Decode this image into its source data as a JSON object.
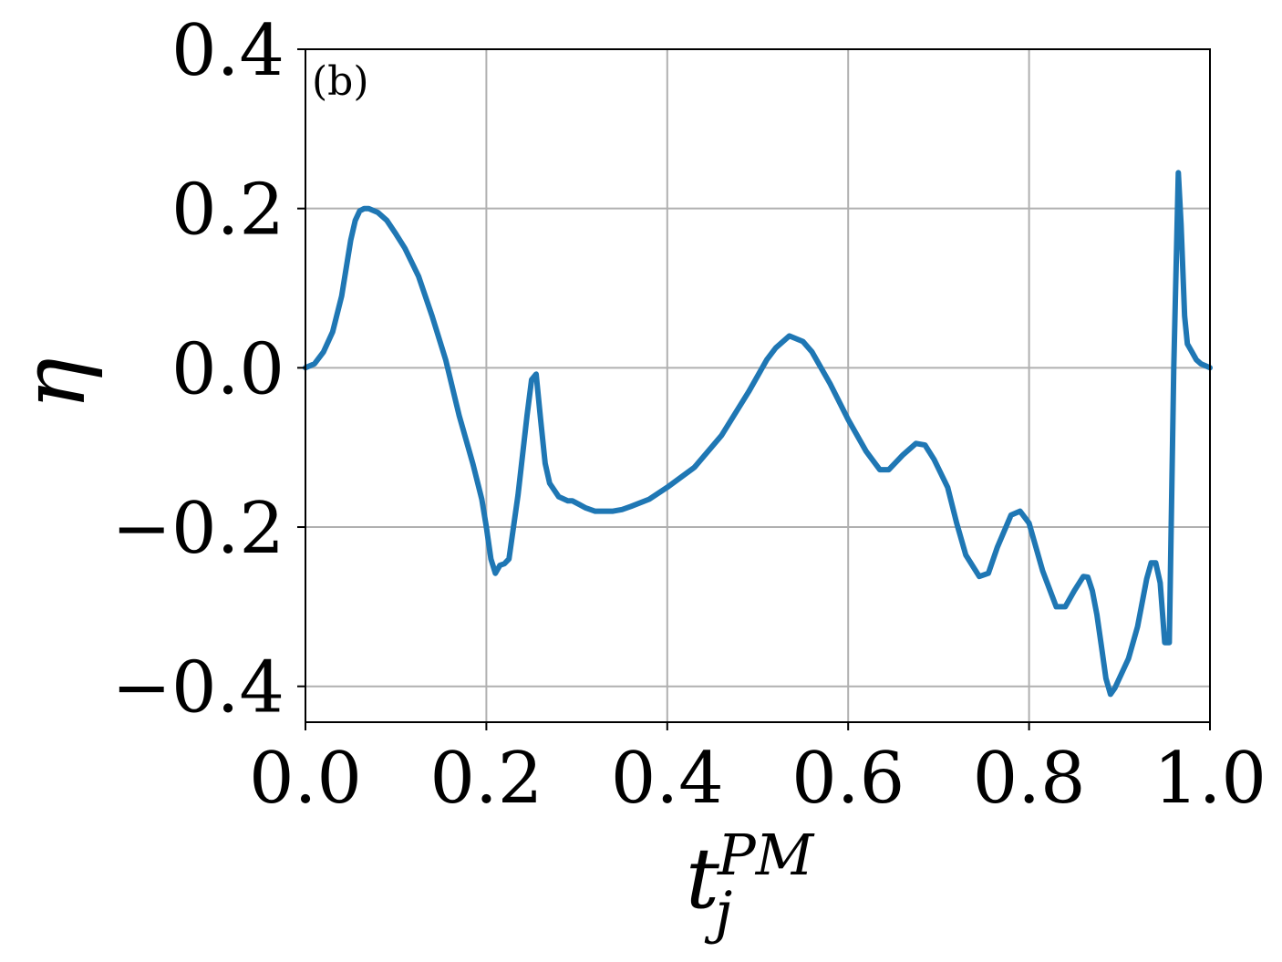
{
  "chart_data": {
    "type": "line",
    "panel_label": "(b)",
    "xlabel": {
      "base": "t",
      "sub": "j",
      "sup": "PM"
    },
    "ylabel": "η",
    "xlim": [
      0.0,
      1.0
    ],
    "ylim": [
      -0.445,
      0.4
    ],
    "xticks": [
      0.0,
      0.2,
      0.4,
      0.6,
      0.8,
      1.0
    ],
    "xtick_labels": [
      "0.0",
      "0.2",
      "0.4",
      "0.6",
      "0.8",
      "1.0"
    ],
    "yticks": [
      -0.4,
      -0.2,
      0.0,
      0.2,
      0.4
    ],
    "ytick_labels": [
      "−0.4",
      "−0.2",
      "0.0",
      "0.2",
      "0.4"
    ],
    "grid": true,
    "line_color": "#1f77b4",
    "grid_color": "#b0b0b0",
    "series": [
      {
        "x": [
          0.0,
          0.01,
          0.02,
          0.03,
          0.04,
          0.05,
          0.055,
          0.06,
          0.065,
          0.07,
          0.08,
          0.09,
          0.1,
          0.11,
          0.125,
          0.14,
          0.155,
          0.17,
          0.185,
          0.195,
          0.2,
          0.205,
          0.21,
          0.215,
          0.22,
          0.225,
          0.235,
          0.245,
          0.25,
          0.255,
          0.26,
          0.265,
          0.27,
          0.28,
          0.29,
          0.295,
          0.3,
          0.31,
          0.32,
          0.33,
          0.34,
          0.35,
          0.36,
          0.38,
          0.4,
          0.43,
          0.46,
          0.49,
          0.51,
          0.52,
          0.535,
          0.55,
          0.56,
          0.58,
          0.6,
          0.62,
          0.635,
          0.645,
          0.66,
          0.675,
          0.685,
          0.695,
          0.71,
          0.72,
          0.73,
          0.745,
          0.755,
          0.765,
          0.78,
          0.79,
          0.8,
          0.815,
          0.83,
          0.84,
          0.85,
          0.86,
          0.865,
          0.87,
          0.875,
          0.88,
          0.885,
          0.89,
          0.895,
          0.91,
          0.92,
          0.93,
          0.935,
          0.94,
          0.945,
          0.95,
          0.955,
          0.96,
          0.965,
          0.968,
          0.972,
          0.975,
          0.98,
          0.985,
          0.99,
          1.0
        ],
        "y": [
          0.0,
          0.005,
          0.02,
          0.045,
          0.09,
          0.16,
          0.185,
          0.197,
          0.2,
          0.2,
          0.195,
          0.185,
          0.168,
          0.15,
          0.115,
          0.065,
          0.01,
          -0.06,
          -0.12,
          -0.165,
          -0.2,
          -0.24,
          -0.258,
          -0.248,
          -0.246,
          -0.24,
          -0.16,
          -0.06,
          -0.015,
          -0.008,
          -0.065,
          -0.12,
          -0.145,
          -0.162,
          -0.167,
          -0.167,
          -0.17,
          -0.176,
          -0.18,
          -0.18,
          -0.18,
          -0.178,
          -0.174,
          -0.165,
          -0.15,
          -0.125,
          -0.085,
          -0.03,
          0.01,
          0.025,
          0.04,
          0.033,
          0.02,
          -0.02,
          -0.065,
          -0.105,
          -0.128,
          -0.128,
          -0.11,
          -0.095,
          -0.097,
          -0.115,
          -0.15,
          -0.195,
          -0.235,
          -0.262,
          -0.258,
          -0.225,
          -0.185,
          -0.18,
          -0.195,
          -0.255,
          -0.3,
          -0.3,
          -0.28,
          -0.262,
          -0.263,
          -0.28,
          -0.31,
          -0.35,
          -0.39,
          -0.41,
          -0.402,
          -0.365,
          -0.325,
          -0.265,
          -0.245,
          -0.245,
          -0.27,
          -0.345,
          -0.345,
          0.0,
          0.245,
          0.18,
          0.065,
          0.03,
          0.02,
          0.01,
          0.005,
          0.0
        ]
      }
    ]
  }
}
